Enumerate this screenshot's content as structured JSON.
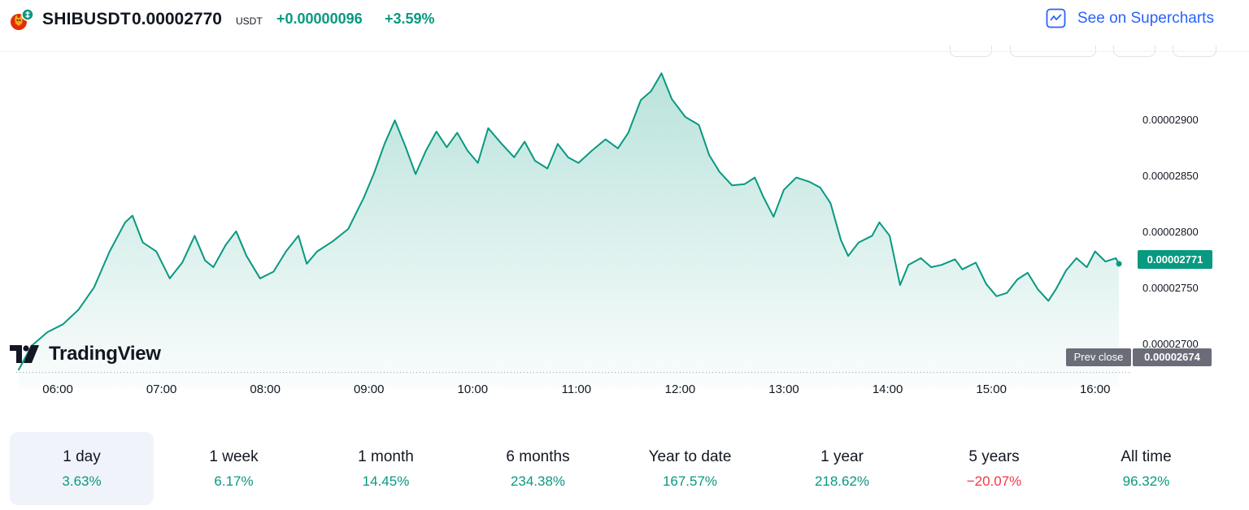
{
  "header": {
    "symbol": "SHIBUSDT",
    "price": "0.00002770",
    "currency": "USDT",
    "change_abs": "+0.00000096",
    "change_pct": "+3.59%",
    "supercharts_label": "See on Supercharts",
    "icons": {
      "symbol": "shiba-inu-coin-icon",
      "supercharts": "chart-line-icon"
    }
  },
  "colors": {
    "up": "#089981",
    "down": "#f23645",
    "link": "#2962ff",
    "axis_text": "#131722",
    "prev_close_tag": "#6a6d78"
  },
  "watermark": "TradingView",
  "price_tag": "0.00002771",
  "prev_close": {
    "label": "Prev close",
    "value": "0.00002674"
  },
  "chart_data": {
    "type": "area",
    "x_ticks": [
      "06:00",
      "07:00",
      "08:00",
      "09:00",
      "10:00",
      "11:00",
      "12:00",
      "13:00",
      "14:00",
      "15:00",
      "16:00"
    ],
    "y_ticks": [
      {
        "value": 2.9e-05,
        "label": "0.00002900"
      },
      {
        "value": 2.85e-05,
        "label": "0.00002850"
      },
      {
        "value": 2.8e-05,
        "label": "0.00002800"
      },
      {
        "value": 2.75e-05,
        "label": "0.00002750"
      },
      {
        "value": 2.7e-05,
        "label": "0.00002700"
      }
    ],
    "ylim": [
      2.66e-05,
      2.96e-05
    ],
    "xlim": [
      5.6,
      16.3
    ],
    "prev_close": 2.674e-05,
    "last_value": 2.771e-05,
    "series": [
      {
        "points": [
          [
            5.62,
            2.676e-05
          ],
          [
            5.75,
            2.698e-05
          ],
          [
            5.9,
            2.71e-05
          ],
          [
            6.05,
            2.717e-05
          ],
          [
            6.2,
            2.73e-05
          ],
          [
            6.35,
            2.75e-05
          ],
          [
            6.5,
            2.782e-05
          ],
          [
            6.65,
            2.808e-05
          ],
          [
            6.72,
            2.814e-05
          ],
          [
            6.82,
            2.79e-05
          ],
          [
            6.95,
            2.782e-05
          ],
          [
            7.08,
            2.758e-05
          ],
          [
            7.2,
            2.772e-05
          ],
          [
            7.32,
            2.796e-05
          ],
          [
            7.42,
            2.774e-05
          ],
          [
            7.5,
            2.768e-05
          ],
          [
            7.62,
            2.788e-05
          ],
          [
            7.72,
            2.8e-05
          ],
          [
            7.82,
            2.778e-05
          ],
          [
            7.95,
            2.758e-05
          ],
          [
            8.08,
            2.764e-05
          ],
          [
            8.2,
            2.782e-05
          ],
          [
            8.32,
            2.796e-05
          ],
          [
            8.4,
            2.771e-05
          ],
          [
            8.5,
            2.782e-05
          ],
          [
            8.65,
            2.791e-05
          ],
          [
            8.8,
            2.802e-05
          ],
          [
            8.95,
            2.83e-05
          ],
          [
            9.05,
            2.852e-05
          ],
          [
            9.15,
            2.878e-05
          ],
          [
            9.25,
            2.899e-05
          ],
          [
            9.35,
            2.876e-05
          ],
          [
            9.45,
            2.851e-05
          ],
          [
            9.55,
            2.872e-05
          ],
          [
            9.65,
            2.889e-05
          ],
          [
            9.75,
            2.875e-05
          ],
          [
            9.85,
            2.888e-05
          ],
          [
            9.95,
            2.872e-05
          ],
          [
            10.05,
            2.861e-05
          ],
          [
            10.15,
            2.892e-05
          ],
          [
            10.28,
            2.878e-05
          ],
          [
            10.4,
            2.866e-05
          ],
          [
            10.5,
            2.88e-05
          ],
          [
            10.6,
            2.863e-05
          ],
          [
            10.72,
            2.856e-05
          ],
          [
            10.82,
            2.878e-05
          ],
          [
            10.92,
            2.866e-05
          ],
          [
            11.02,
            2.861e-05
          ],
          [
            11.15,
            2.872e-05
          ],
          [
            11.28,
            2.882e-05
          ],
          [
            11.4,
            2.874e-05
          ],
          [
            11.5,
            2.888e-05
          ],
          [
            11.62,
            2.917e-05
          ],
          [
            11.72,
            2.925e-05
          ],
          [
            11.82,
            2.941e-05
          ],
          [
            11.92,
            2.918e-05
          ],
          [
            12.05,
            2.902e-05
          ],
          [
            12.18,
            2.895e-05
          ],
          [
            12.28,
            2.868e-05
          ],
          [
            12.38,
            2.853e-05
          ],
          [
            12.5,
            2.841e-05
          ],
          [
            12.62,
            2.842e-05
          ],
          [
            12.72,
            2.848e-05
          ],
          [
            12.8,
            2.831e-05
          ],
          [
            12.9,
            2.813e-05
          ],
          [
            13.0,
            2.837e-05
          ],
          [
            13.12,
            2.848e-05
          ],
          [
            13.25,
            2.844e-05
          ],
          [
            13.35,
            2.839e-05
          ],
          [
            13.45,
            2.825e-05
          ],
          [
            13.55,
            2.792e-05
          ],
          [
            13.62,
            2.778e-05
          ],
          [
            13.72,
            2.79e-05
          ],
          [
            13.85,
            2.796e-05
          ],
          [
            13.92,
            2.808e-05
          ],
          [
            14.02,
            2.796e-05
          ],
          [
            14.12,
            2.752e-05
          ],
          [
            14.2,
            2.77e-05
          ],
          [
            14.32,
            2.776e-05
          ],
          [
            14.42,
            2.768e-05
          ],
          [
            14.52,
            2.77e-05
          ],
          [
            14.65,
            2.775e-05
          ],
          [
            14.72,
            2.766e-05
          ],
          [
            14.85,
            2.772e-05
          ],
          [
            14.95,
            2.753e-05
          ],
          [
            15.05,
            2.742e-05
          ],
          [
            15.15,
            2.745e-05
          ],
          [
            15.25,
            2.757e-05
          ],
          [
            15.35,
            2.763e-05
          ],
          [
            15.45,
            2.748e-05
          ],
          [
            15.55,
            2.738e-05
          ],
          [
            15.62,
            2.748e-05
          ],
          [
            15.72,
            2.765e-05
          ],
          [
            15.82,
            2.776e-05
          ],
          [
            15.92,
            2.768e-05
          ],
          [
            16.0,
            2.782e-05
          ],
          [
            16.1,
            2.773e-05
          ],
          [
            16.2,
            2.776e-05
          ],
          [
            16.23,
            2.771e-05
          ]
        ]
      }
    ]
  },
  "periods": [
    {
      "label": "1 day",
      "value": "3.63%",
      "direction": "up",
      "selected": true
    },
    {
      "label": "1 week",
      "value": "6.17%",
      "direction": "up"
    },
    {
      "label": "1 month",
      "value": "14.45%",
      "direction": "up"
    },
    {
      "label": "6 months",
      "value": "234.38%",
      "direction": "up"
    },
    {
      "label": "Year to date",
      "value": "167.57%",
      "direction": "up"
    },
    {
      "label": "1 year",
      "value": "218.62%",
      "direction": "up"
    },
    {
      "label": "5 years",
      "value": "−20.07%",
      "direction": "down"
    },
    {
      "label": "All time",
      "value": "96.32%",
      "direction": "up"
    }
  ]
}
